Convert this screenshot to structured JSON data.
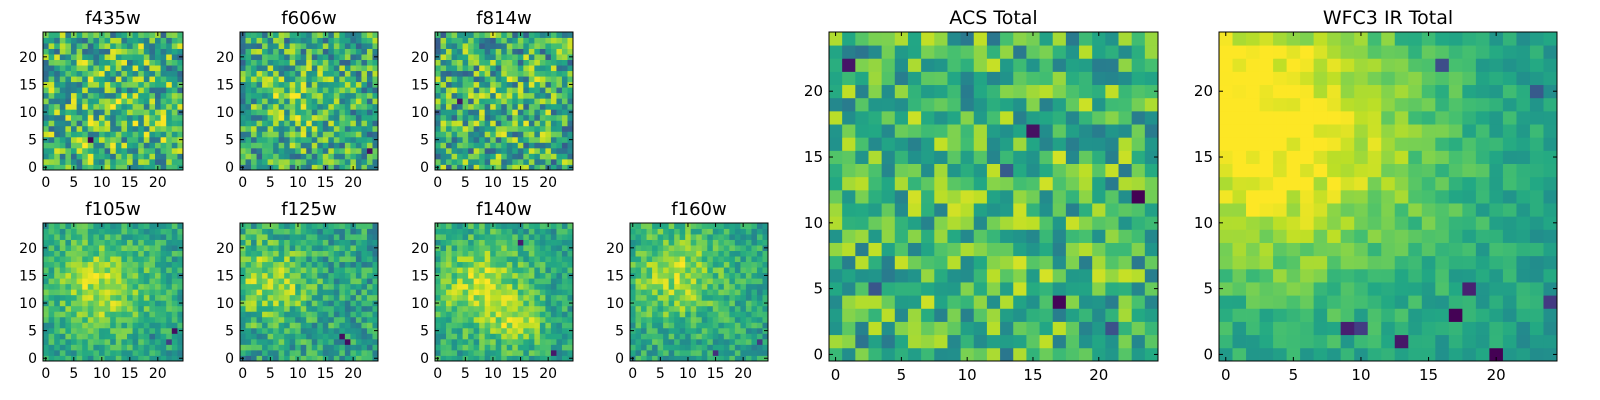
{
  "chart_data": [
    {
      "id": "f435w",
      "type": "heatmap",
      "title": "f435w",
      "xlim": [
        -0.5,
        24.5
      ],
      "ylim": [
        -0.5,
        24.5
      ],
      "xticks": [
        0,
        5,
        10,
        15,
        20
      ],
      "yticks": [
        0,
        5,
        10,
        15,
        20
      ],
      "colormap": "viridis",
      "grid_size": 25,
      "grid_estimated": "noisy pixels; fine-grained structure not recoverable",
      "seed": 11,
      "base": 0.62,
      "noise": 0.33,
      "bright": [
        [
          12,
          12,
          10,
          0.08
        ]
      ],
      "dark": [
        [
          8,
          5,
          0.35
        ],
        [
          5,
          18,
          0.3
        ],
        [
          16,
          4,
          0.3
        ]
      ]
    },
    {
      "id": "f606w",
      "type": "heatmap",
      "title": "f606w",
      "xlim": [
        -0.5,
        24.5
      ],
      "ylim": [
        -0.5,
        24.5
      ],
      "xticks": [
        0,
        5,
        10,
        15,
        20
      ],
      "yticks": [
        0,
        5,
        10,
        15,
        20
      ],
      "colormap": "viridis",
      "grid_size": 25,
      "grid_estimated": "noisy pixels; fine-grained structure not recoverable",
      "seed": 23,
      "base": 0.6,
      "noise": 0.3,
      "bright": [
        [
          10,
          12,
          5,
          0.15
        ]
      ],
      "dark": [
        [
          23,
          3,
          0.3
        ],
        [
          15,
          0,
          0.3
        ]
      ]
    },
    {
      "id": "f814w",
      "type": "heatmap",
      "title": "f814w",
      "xlim": [
        -0.5,
        24.5
      ],
      "ylim": [
        -0.5,
        24.5
      ],
      "xticks": [
        0,
        5,
        10,
        15,
        20
      ],
      "yticks": [
        0,
        5,
        10,
        15,
        20
      ],
      "colormap": "viridis",
      "grid_size": 25,
      "grid_estimated": "noisy pixels; fine-grained structure not recoverable",
      "seed": 37,
      "base": 0.6,
      "noise": 0.33,
      "bright": [
        [
          12,
          12,
          8,
          0.06
        ]
      ],
      "dark": [
        [
          20,
          20,
          0.3
        ],
        [
          4,
          12,
          0.25
        ]
      ]
    },
    {
      "id": "f105w",
      "type": "heatmap",
      "title": "f105w",
      "xlim": [
        -0.5,
        24.5
      ],
      "ylim": [
        -0.5,
        24.5
      ],
      "xticks": [
        0,
        5,
        10,
        15,
        20
      ],
      "yticks": [
        0,
        5,
        10,
        15,
        20
      ],
      "colormap": "viridis",
      "grid_size": 25,
      "grid_estimated": "smooth field; values approximated",
      "seed": 41,
      "base": 0.58,
      "noise": 0.16,
      "bright": [
        [
          10,
          13,
          6,
          0.3
        ]
      ],
      "dark": [
        [
          22,
          3,
          0.45
        ],
        [
          23,
          5,
          0.4
        ],
        [
          19,
          4,
          0.35
        ]
      ]
    },
    {
      "id": "f125w",
      "type": "heatmap",
      "title": "f125w",
      "xlim": [
        -0.5,
        24.5
      ],
      "ylim": [
        -0.5,
        24.5
      ],
      "xticks": [
        0,
        5,
        10,
        15,
        20
      ],
      "yticks": [
        0,
        5,
        10,
        15,
        20
      ],
      "colormap": "viridis",
      "grid_size": 25,
      "grid_estimated": "smooth field; values approximated",
      "seed": 53,
      "base": 0.58,
      "noise": 0.2,
      "bright": [
        [
          5,
          14,
          5,
          0.28
        ]
      ],
      "dark": [
        [
          18,
          4,
          0.45
        ],
        [
          19,
          3,
          0.4
        ],
        [
          1,
          0,
          0.4
        ]
      ]
    },
    {
      "id": "f140w",
      "type": "heatmap",
      "title": "f140w",
      "xlim": [
        -0.5,
        24.5
      ],
      "ylim": [
        -0.5,
        24.5
      ],
      "xticks": [
        0,
        5,
        10,
        15,
        20
      ],
      "yticks": [
        0,
        5,
        10,
        15,
        20
      ],
      "colormap": "viridis",
      "grid_size": 25,
      "grid_estimated": "smooth field; values approximated",
      "seed": 67,
      "base": 0.58,
      "noise": 0.16,
      "bright": [
        [
          8,
          13,
          6,
          0.3
        ],
        [
          15,
          6,
          3,
          0.25
        ]
      ],
      "dark": [
        [
          15,
          21,
          0.45
        ],
        [
          21,
          1,
          0.4
        ]
      ]
    },
    {
      "id": "f160w",
      "type": "heatmap",
      "title": "f160w",
      "xlim": [
        -0.5,
        24.5
      ],
      "ylim": [
        -0.5,
        24.5
      ],
      "xticks": [
        0,
        5,
        10,
        15,
        20
      ],
      "yticks": [
        0,
        5,
        10,
        15,
        20
      ],
      "colormap": "viridis",
      "grid_size": 25,
      "grid_estimated": "smooth field; values approximated",
      "seed": 79,
      "base": 0.58,
      "noise": 0.16,
      "bright": [
        [
          8,
          15,
          6,
          0.28
        ]
      ],
      "dark": [
        [
          15,
          1,
          0.45
        ],
        [
          23,
          3,
          0.4
        ]
      ]
    },
    {
      "id": "acs_total",
      "type": "heatmap",
      "title": "ACS Total",
      "xlim": [
        -0.5,
        24.5
      ],
      "ylim": [
        -0.5,
        24.5
      ],
      "xticks": [
        0,
        5,
        10,
        15,
        20
      ],
      "yticks": [
        0,
        5,
        10,
        15,
        20
      ],
      "colormap": "viridis",
      "grid_size": 25,
      "grid_estimated": "noisy pixels; fine-grained structure not recoverable",
      "seed": 97,
      "base": 0.62,
      "noise": 0.26,
      "bright": [
        [
          12,
          12,
          9,
          0.08
        ]
      ],
      "dark": [
        [
          1,
          22,
          0.55
        ],
        [
          15,
          17,
          0.5
        ],
        [
          3,
          5,
          0.5
        ],
        [
          23,
          12,
          0.55
        ],
        [
          21,
          2,
          0.5
        ],
        [
          13,
          14,
          0.45
        ],
        [
          6,
          6,
          0.4
        ],
        [
          17,
          4,
          0.4
        ]
      ]
    },
    {
      "id": "wfc3_ir_total",
      "type": "heatmap",
      "title": "WFC3 IR Total",
      "xlim": [
        -0.5,
        24.5
      ],
      "ylim": [
        -0.5,
        24.5
      ],
      "xticks": [
        0,
        5,
        10,
        15,
        20
      ],
      "yticks": [
        0,
        5,
        10,
        15,
        20
      ],
      "colormap": "viridis",
      "grid_size": 25,
      "grid_estimated": "smooth field; values approximated",
      "seed": 131,
      "base": 0.55,
      "noise": 0.1,
      "bright": [
        [
          0,
          19,
          8,
          0.4
        ],
        [
          8,
          14,
          8,
          0.2
        ]
      ],
      "dark": [
        [
          9,
          2,
          0.55
        ],
        [
          10,
          2,
          0.5
        ],
        [
          17,
          3,
          0.5
        ],
        [
          18,
          5,
          0.45
        ],
        [
          24,
          4,
          0.45
        ],
        [
          20,
          0,
          0.5
        ],
        [
          16,
          22,
          0.4
        ],
        [
          23,
          20,
          0.4
        ],
        [
          13,
          1,
          0.45
        ]
      ]
    }
  ]
}
